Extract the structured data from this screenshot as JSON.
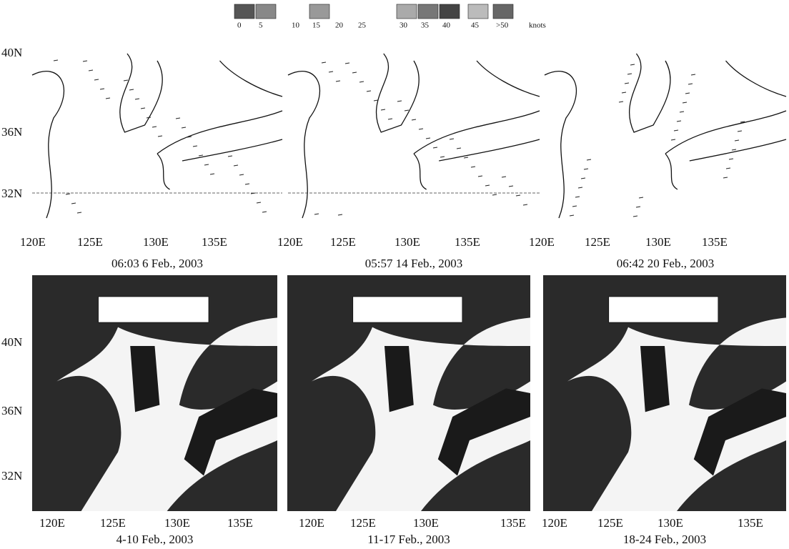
{
  "legend": {
    "labels": [
      "0",
      "5",
      "10",
      "15",
      "20",
      "25",
      "30",
      "35",
      "40",
      "45",
      ">50"
    ],
    "unit": "knots"
  },
  "panels": [
    {
      "caption": "06:03 6 Feb., 2003",
      "lat_labels": [
        "40N",
        "36N",
        "32N"
      ],
      "lon_labels": [
        "120E",
        "125E",
        "130E",
        "135E"
      ]
    },
    {
      "caption": "05:57 14 Feb., 2003",
      "lon_labels": [
        "120E",
        "125E",
        "130E",
        "135E"
      ]
    },
    {
      "caption": "06:42 20 Feb., 2003",
      "lon_labels": [
        "120E",
        "125E",
        "130E",
        "135E"
      ]
    },
    {
      "caption": "4-10 Feb., 2003",
      "lat_labels": [
        "40N",
        "36N",
        "32N"
      ],
      "lon_labels": [
        "120E",
        "125E",
        "130E",
        "135E"
      ]
    },
    {
      "caption": "11-17 Feb., 2003",
      "lon_labels": [
        "120E",
        "125E",
        "130E",
        "135E"
      ]
    },
    {
      "caption": "18-24 Feb., 2003",
      "lon_labels": [
        "120E",
        "125E",
        "130E",
        "135E"
      ]
    }
  ]
}
